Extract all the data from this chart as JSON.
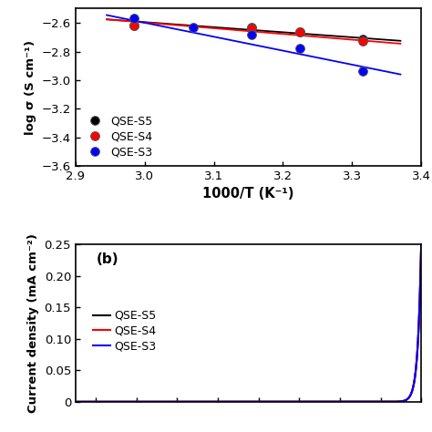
{
  "panel_a": {
    "series": [
      {
        "label": "QSE-S5",
        "color": "#000000",
        "x_data": [
          2.985,
          3.155,
          3.225,
          3.315
        ],
        "y_data": [
          -2.62,
          -2.63,
          -2.665,
          -2.715
        ],
        "fit_x": [
          2.945,
          3.37
        ],
        "fit_y": [
          -2.575,
          -2.725
        ]
      },
      {
        "label": "QSE-S4",
        "color": "#ff0000",
        "x_data": [
          2.985,
          3.155,
          3.225,
          3.315
        ],
        "y_data": [
          -2.62,
          -2.635,
          -2.665,
          -2.725
        ],
        "fit_x": [
          2.945,
          3.37
        ],
        "fit_y": [
          -2.575,
          -2.745
        ]
      },
      {
        "label": "QSE-S3",
        "color": "#0000ff",
        "x_data": [
          2.985,
          3.07,
          3.155,
          3.225,
          3.315
        ],
        "y_data": [
          -2.565,
          -2.63,
          -2.685,
          -2.78,
          -2.935
        ],
        "fit_x": [
          2.945,
          3.37
        ],
        "fit_y": [
          -2.545,
          -2.96
        ]
      }
    ],
    "xlabel": "1000/T (K⁻¹)",
    "ylabel": "log σ (S cm⁻¹)",
    "xlim": [
      2.9,
      3.4
    ],
    "ylim": [
      -3.6,
      -2.5
    ],
    "yticks": [
      -3.6,
      -3.4,
      -3.2,
      -3.0,
      -2.8,
      -2.6
    ],
    "xticks": [
      2.9,
      3.0,
      3.1,
      3.2,
      3.3,
      3.4
    ]
  },
  "panel_b": {
    "label": "(b)",
    "series": [
      {
        "label": "QSE-S5",
        "color": "#000000",
        "x_knee": 4.75,
        "slope": 60.0
      },
      {
        "label": "QSE-S4",
        "color": "#ff0000",
        "x_knee": 4.78,
        "slope": 60.0
      },
      {
        "label": "QSE-S3",
        "color": "#0000ff",
        "x_knee": 4.82,
        "slope": 60.0
      }
    ],
    "xlabel": "",
    "ylabel": "Current density (mA cm⁻²)",
    "xlim": [
      3.5,
      5.2
    ],
    "ylim": [
      0.0,
      0.25
    ],
    "yticks": [
      0.0,
      0.05,
      0.1,
      0.15,
      0.2,
      0.25
    ],
    "ytick_labels": [
      "0",
      "0.05",
      "0.10",
      "0.15",
      "0.20",
      "0.25"
    ]
  },
  "background_color": "#ffffff"
}
